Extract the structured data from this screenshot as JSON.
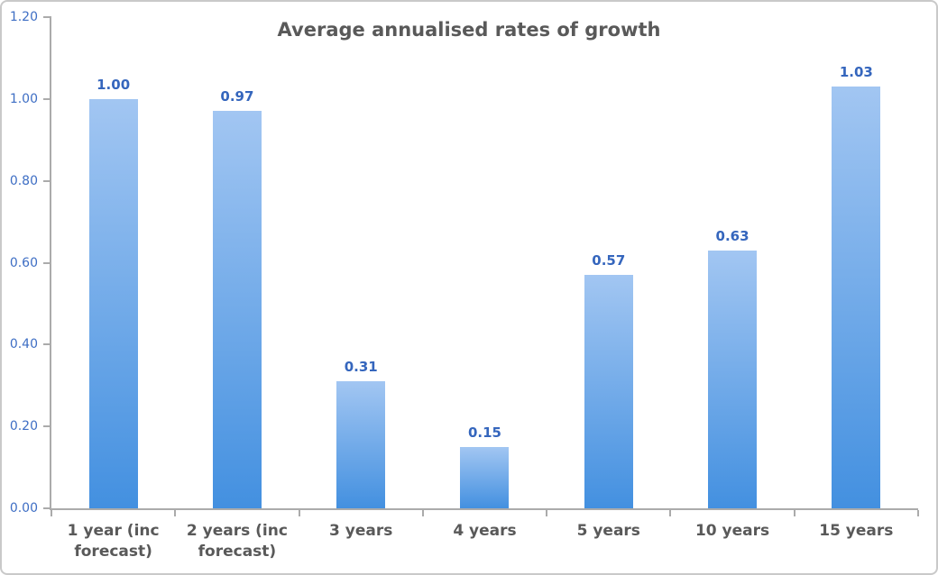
{
  "chart_data": {
    "type": "bar",
    "title": "Average annualised rates of growth",
    "categories": [
      "1 year (inc forecast)",
      "2 years (inc forecast)",
      "3 years",
      "4 years",
      "5 years",
      "10 years",
      "15 years"
    ],
    "values": [
      1.0,
      0.97,
      0.31,
      0.15,
      0.57,
      0.63,
      1.03
    ],
    "value_labels": [
      "1.00",
      "0.97",
      "0.31",
      "0.15",
      "0.57",
      "0.63",
      "1.03"
    ],
    "xlabel": "",
    "ylabel": "",
    "ylim": [
      0,
      1.2
    ],
    "ytick_labels": [
      "0.00",
      "0.20",
      "0.40",
      "0.60",
      "0.80",
      "1.00",
      "1.20"
    ],
    "grid": false,
    "legend": "none",
    "colors": {
      "bar_gradient_top": "#A2C6F2",
      "bar_gradient_bottom": "#4390E0",
      "value_label": "#3566BD",
      "ytick_label": "#3E6EC4",
      "axis_line": "#ABABAB",
      "category_label": "#595959",
      "title": "#595959",
      "border": "#C9C9C9",
      "background": "#FFFFFF"
    }
  }
}
